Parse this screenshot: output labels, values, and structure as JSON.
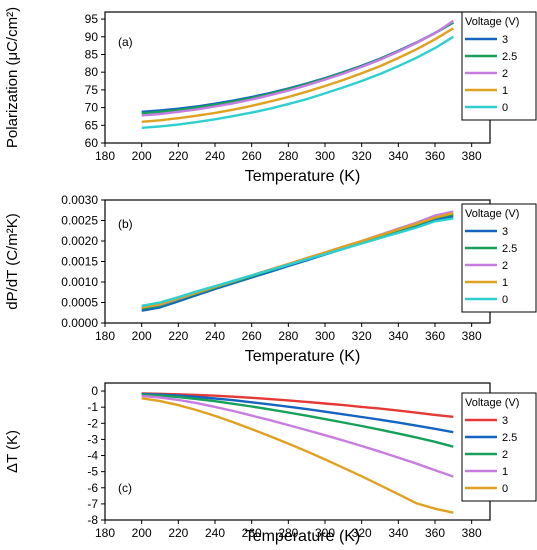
{
  "chart_data": [
    {
      "type": "line",
      "panel_label": "(a)",
      "xlabel": "Temperature (K)",
      "ylabel": "Polarization (μC/cm²)",
      "xlim": [
        180,
        390
      ],
      "ylim": [
        60,
        97
      ],
      "xticks": [
        180,
        200,
        220,
        240,
        260,
        280,
        300,
        320,
        340,
        360,
        380
      ],
      "yticks": [
        60,
        65,
        70,
        75,
        80,
        85,
        90,
        95
      ],
      "x": [
        200,
        210,
        220,
        230,
        240,
        250,
        260,
        270,
        280,
        290,
        300,
        310,
        320,
        330,
        340,
        350,
        360,
        370
      ],
      "legend_title": "Voltage (V)",
      "series": [
        {
          "name": "3",
          "color": "#1565c0",
          "values": [
            68.8,
            69.2,
            69.7,
            70.3,
            71.1,
            72.0,
            73.0,
            74.1,
            75.4,
            76.8,
            78.3,
            80.0,
            81.8,
            83.8,
            86.0,
            88.4,
            91.1,
            94.1
          ]
        },
        {
          "name": "2.5",
          "color": "#16a05a",
          "values": [
            68.4,
            68.8,
            69.3,
            70.0,
            70.8,
            71.7,
            72.7,
            73.9,
            75.2,
            76.6,
            78.2,
            79.9,
            81.7,
            83.7,
            85.9,
            88.3,
            91.0,
            94.0
          ]
        },
        {
          "name": "2",
          "color": "#c77de0",
          "values": [
            67.8,
            68.2,
            68.8,
            69.5,
            70.3,
            71.2,
            72.3,
            73.5,
            74.8,
            76.3,
            77.9,
            79.6,
            81.5,
            83.5,
            85.8,
            88.3,
            91.0,
            94.5
          ]
        },
        {
          "name": "1",
          "color": "#e0a020",
          "values": [
            66.0,
            66.4,
            67.0,
            67.7,
            68.5,
            69.4,
            70.5,
            71.7,
            73.0,
            74.5,
            76.1,
            77.8,
            79.7,
            81.7,
            84.0,
            86.5,
            89.3,
            92.4
          ]
        },
        {
          "name": "0",
          "color": "#2ecfcf",
          "values": [
            64.3,
            64.7,
            65.2,
            65.9,
            66.7,
            67.6,
            68.6,
            69.7,
            71.0,
            72.4,
            74.0,
            75.7,
            77.5,
            79.5,
            81.7,
            84.1,
            86.8,
            90.0
          ]
        }
      ]
    },
    {
      "type": "line",
      "panel_label": "(b)",
      "xlabel": "Temperature (K)",
      "ylabel": "dP/dT (C/m²K)",
      "xlim": [
        180,
        390
      ],
      "ylim": [
        0,
        0.003
      ],
      "xticks": [
        180,
        200,
        220,
        240,
        260,
        280,
        300,
        320,
        340,
        360,
        380
      ],
      "yticks": [
        "0.0000",
        "0.0005",
        "0.0010",
        "0.0015",
        "0.0020",
        "0.0025",
        "0.0030"
      ],
      "x": [
        200,
        210,
        220,
        230,
        240,
        250,
        260,
        270,
        280,
        290,
        300,
        310,
        320,
        330,
        340,
        350,
        360,
        370
      ],
      "legend_title": "Voltage (V)",
      "series": [
        {
          "name": "3",
          "color": "#1565c0",
          "values": [
            0.0003,
            0.00038,
            0.00053,
            0.00068,
            0.00083,
            0.00097,
            0.00111,
            0.00125,
            0.00139,
            0.00153,
            0.00167,
            0.00181,
            0.00195,
            0.00209,
            0.00223,
            0.00237,
            0.00252,
            0.0026
          ]
        },
        {
          "name": "2.5",
          "color": "#16a05a",
          "values": [
            0.00035,
            0.00042,
            0.00057,
            0.00072,
            0.00086,
            0.001,
            0.00114,
            0.00128,
            0.00142,
            0.00156,
            0.0017,
            0.00184,
            0.00198,
            0.00212,
            0.00226,
            0.0024,
            0.00256,
            0.00265
          ]
        },
        {
          "name": "2",
          "color": "#c77de0",
          "values": [
            0.00038,
            0.00045,
            0.00059,
            0.00074,
            0.00088,
            0.00102,
            0.00116,
            0.0013,
            0.00144,
            0.00158,
            0.00172,
            0.00186,
            0.002,
            0.00215,
            0.0023,
            0.00245,
            0.00262,
            0.00272
          ]
        },
        {
          "name": "1",
          "color": "#e0a020",
          "values": [
            0.00038,
            0.00046,
            0.0006,
            0.00074,
            0.00088,
            0.00102,
            0.00116,
            0.0013,
            0.00144,
            0.00158,
            0.00172,
            0.00186,
            0.002,
            0.00214,
            0.00228,
            0.00242,
            0.00257,
            0.00268
          ]
        },
        {
          "name": "0",
          "color": "#2ecfcf",
          "values": [
            0.00042,
            0.0005,
            0.00063,
            0.00077,
            0.0009,
            0.00103,
            0.00116,
            0.00129,
            0.00142,
            0.00155,
            0.00168,
            0.00181,
            0.00194,
            0.00207,
            0.0022,
            0.00233,
            0.00248,
            0.00255
          ]
        }
      ]
    },
    {
      "type": "line",
      "panel_label": "(c)",
      "xlabel": "Temperature (K)",
      "ylabel": "ΔT (K)",
      "xlim": [
        180,
        390
      ],
      "ylim": [
        -8,
        0.5
      ],
      "xticks": [
        180,
        200,
        220,
        240,
        260,
        280,
        300,
        320,
        340,
        360,
        380
      ],
      "yticks": [
        0,
        -1,
        -2,
        -3,
        -4,
        -5,
        -6,
        -7,
        -8
      ],
      "x": [
        200,
        210,
        220,
        230,
        240,
        250,
        260,
        270,
        280,
        290,
        300,
        310,
        320,
        330,
        340,
        350,
        360,
        370
      ],
      "legend_title": "Voltage (V)",
      "series": [
        {
          "name": "3",
          "color": "#e53935",
          "values": [
            -0.15,
            -0.17,
            -0.2,
            -0.24,
            -0.29,
            -0.35,
            -0.42,
            -0.5,
            -0.58,
            -0.67,
            -0.77,
            -0.87,
            -0.98,
            -1.09,
            -1.21,
            -1.34,
            -1.48,
            -1.6
          ]
        },
        {
          "name": "2.5",
          "color": "#1565c0",
          "values": [
            -0.18,
            -0.22,
            -0.28,
            -0.36,
            -0.46,
            -0.57,
            -0.7,
            -0.83,
            -0.97,
            -1.12,
            -1.28,
            -1.44,
            -1.61,
            -1.78,
            -1.96,
            -2.15,
            -2.34,
            -2.55
          ]
        },
        {
          "name": "2",
          "color": "#16a05a",
          "values": [
            -0.22,
            -0.28,
            -0.37,
            -0.49,
            -0.63,
            -0.79,
            -0.96,
            -1.14,
            -1.33,
            -1.53,
            -1.74,
            -1.95,
            -2.17,
            -2.4,
            -2.64,
            -2.89,
            -3.15,
            -3.45
          ]
        },
        {
          "name": "1",
          "color": "#c77de0",
          "values": [
            -0.3,
            -0.4,
            -0.55,
            -0.75,
            -0.98,
            -1.24,
            -1.52,
            -1.81,
            -2.11,
            -2.42,
            -2.74,
            -3.07,
            -3.41,
            -3.76,
            -4.13,
            -4.51,
            -4.91,
            -5.3
          ]
        },
        {
          "name": "0",
          "color": "#e0a020",
          "values": [
            -0.45,
            -0.62,
            -0.87,
            -1.18,
            -1.54,
            -1.94,
            -2.36,
            -2.8,
            -3.26,
            -3.74,
            -4.24,
            -4.76,
            -5.29,
            -5.84,
            -6.4,
            -6.97,
            -7.3,
            -7.55
          ]
        }
      ]
    }
  ]
}
